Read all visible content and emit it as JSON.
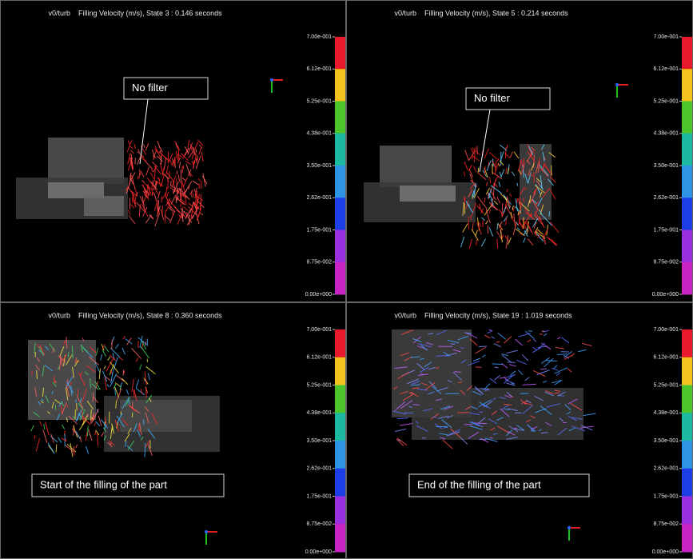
{
  "panels": [
    {
      "model": "v0/turb",
      "header": "Filling Velocity (m/s),  State 3 :  0.146 seconds",
      "note": "No filter"
    },
    {
      "model": "v0/turb",
      "header": "Filling Velocity (m/s),  State 5 :  0.214 seconds",
      "note": "No filter"
    },
    {
      "model": "v0/turb",
      "header": "Filling Velocity (m/s),  State 8 :  0.360 seconds",
      "note": "Start of the filling of the part"
    },
    {
      "model": "v0/turb",
      "header": "Filling Velocity (m/s),  State 19 :  1.019 seconds",
      "note": "End of the filling of the part"
    }
  ],
  "colorbar": {
    "labels": [
      "7.00e-001",
      "6.12e-001",
      "5.25e-001",
      "4.38e-001",
      "3.50e-001",
      "2.62e-001",
      "1.75e-001",
      "8.75e-002",
      "0.00e+000"
    ]
  }
}
